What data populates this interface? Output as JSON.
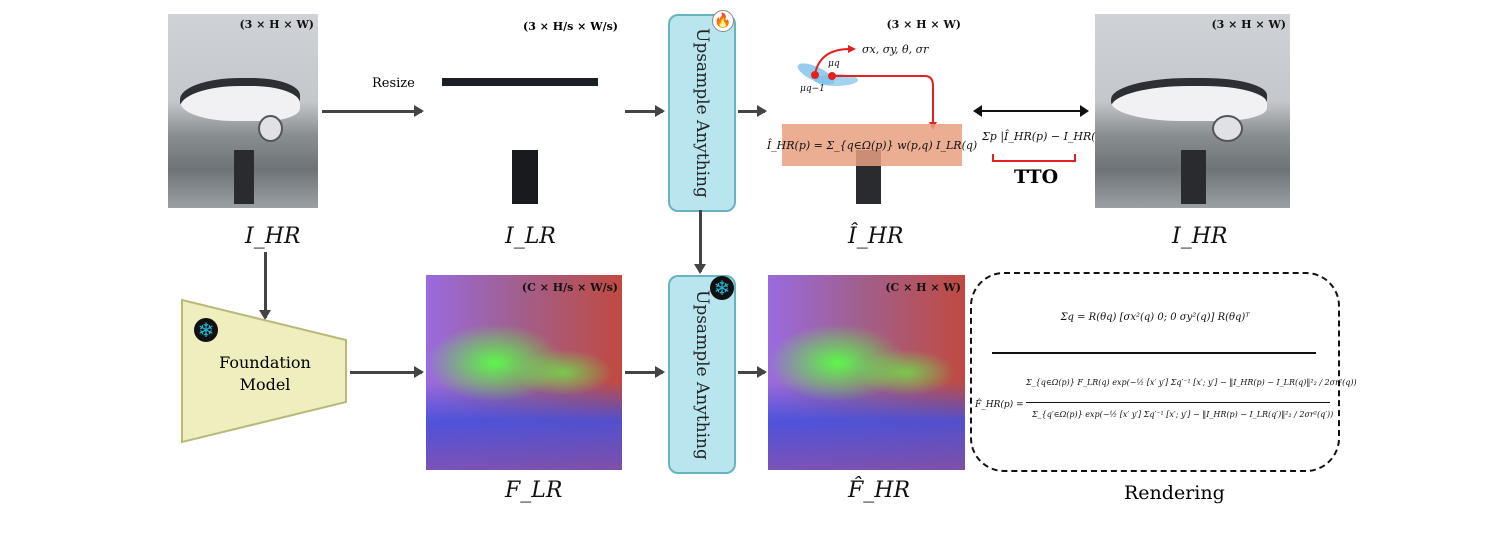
{
  "top_row": {
    "input_image": {
      "dims": "(3 × H × W)",
      "label": "I_HR"
    },
    "resize_label": "Resize",
    "low_res_image": {
      "dims": "(3 × H/s × W/s)",
      "label": "I_LR"
    },
    "upsample_module": {
      "label": "Upsample Anything",
      "state_icon": "fire-icon"
    },
    "output_image": {
      "dims": "(3 × H × W)",
      "label": "Î_HR",
      "gaussian_params": "σx, σy, θ, σr",
      "mu_q": "μq",
      "mu_q_minus_1": "μq−1",
      "formula": "Î_HR(p) = Σ_{q∈Ω(p)} w(p,q) I_LR(q)"
    },
    "loss": {
      "formula": "Σp |Î_HR(p) − I_HR(p)|₁",
      "label": "TTO"
    },
    "target_image": {
      "dims": "(3 × H × W)",
      "label": "I_HR"
    }
  },
  "bottom_row": {
    "foundation_model": {
      "label_line1": "Foundation",
      "label_line2": "Model",
      "state_icon": "snowflake-icon"
    },
    "low_res_features": {
      "dims": "(C × H/s × W/s)",
      "label": "F_LR"
    },
    "upsample_module": {
      "label": "Upsample Anything",
      "state_icon": "snowflake-icon"
    },
    "output_features": {
      "dims": "(C × H × W)",
      "label": "F̂_HR"
    },
    "rendering": {
      "covariance_formula": "Σq = R(θq) [σx²(q) 0; 0 σy²(q)] R(θq)ᵀ",
      "numerator": "Σ_{q∈Ω(p)} F_LR(q) exp(−½ [x′ y′] Σq′⁻¹ [x′; y′] − ‖I_HR(p) − I_LR(q)‖²₂ / 2σr²(q))",
      "lhs": "F̂_HR(p) =",
      "denominator": "Σ_{q′∈Ω(p)} exp(−½ [x′ y′] Σq′⁻¹ [x′; y′] − ‖I_HR(p) − I_LR(q′)‖²₂ / 2σr²(q′))",
      "label": "Rendering"
    }
  },
  "colors": {
    "upsample_fill": "#b8e5ee",
    "upsample_border": "#68b3c0",
    "foundation_fill": "#eeeebe",
    "foundation_border": "#b9b97a",
    "highlight": "#e8a080",
    "red": "#e52020"
  }
}
